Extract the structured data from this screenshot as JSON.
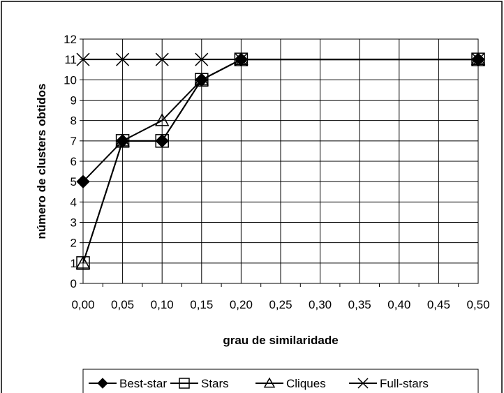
{
  "chart_data": {
    "type": "line",
    "title": "",
    "xlabel": "grau de similaridade",
    "ylabel": "número de clusters obtidos",
    "categories": [
      "0,00",
      "0,05",
      "0,10",
      "0,15",
      "0,20",
      "0,25",
      "0,30",
      "0,35",
      "0,40",
      "0,45",
      "0,50"
    ],
    "ylim": [
      0,
      12
    ],
    "yticks": [
      "0",
      "1",
      "2",
      "3",
      "4",
      "5",
      "6",
      "7",
      "8",
      "9",
      "10",
      "11",
      "12"
    ],
    "grid": true,
    "legend_position": "bottom",
    "series": [
      {
        "name": "Best-star",
        "marker": "diamond-filled",
        "values": [
          5,
          7,
          7,
          10,
          11,
          null,
          null,
          null,
          null,
          null,
          11
        ]
      },
      {
        "name": "Stars",
        "marker": "square-open",
        "values": [
          1,
          7,
          7,
          10,
          11,
          null,
          null,
          null,
          null,
          null,
          11
        ]
      },
      {
        "name": "Cliques",
        "marker": "triangle-open",
        "values": [
          1,
          7,
          8,
          10,
          11,
          null,
          null,
          null,
          null,
          null,
          11
        ]
      },
      {
        "name": "Full-stars",
        "marker": "x",
        "values": [
          11,
          11,
          11,
          11,
          11,
          null,
          null,
          null,
          null,
          null,
          11
        ]
      }
    ]
  }
}
